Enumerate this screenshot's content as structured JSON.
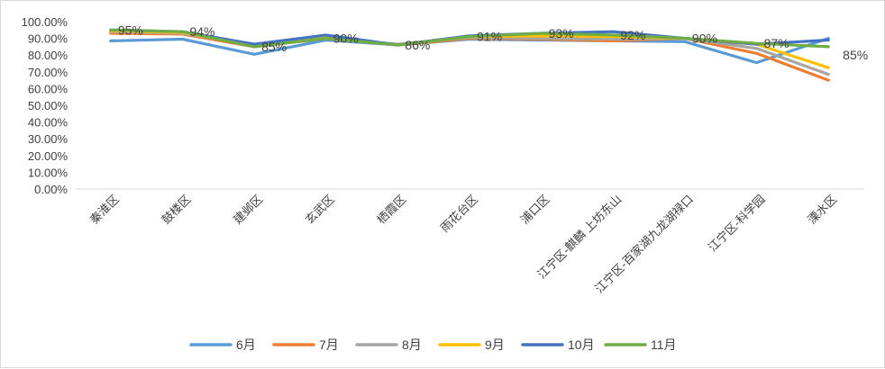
{
  "chart_data": {
    "type": "line",
    "categories": [
      "秦淮区",
      "鼓楼区",
      "建邺区",
      "玄武区",
      "栖霞区",
      "雨花台区",
      "浦口区",
      "江宁区-麒麟 上坊东山",
      "江宁区-百家湖九龙湖禄口",
      "江宁区-科学园",
      "溧水区"
    ],
    "y_ticks": [
      "0.00%",
      "10.00%",
      "20.00%",
      "30.00%",
      "40.00%",
      "50.00%",
      "60.00%",
      "70.00%",
      "80.00%",
      "90.00%",
      "100.00%"
    ],
    "ylim": [
      0,
      100
    ],
    "grid": false,
    "legend_position": "bottom",
    "series": [
      {
        "name": "6月",
        "color": "#5b9bd5",
        "values": [
          88.5,
          89.5,
          80.5,
          89.0,
          86.0,
          89.5,
          89.0,
          88.5,
          88.0,
          75.5,
          90.0
        ]
      },
      {
        "name": "7月",
        "color": "#ed7d31",
        "values": [
          93.0,
          92.5,
          85.0,
          90.0,
          86.0,
          90.0,
          89.5,
          88.5,
          90.0,
          81.0,
          65.0
        ]
      },
      {
        "name": "8月",
        "color": "#a5a5a5",
        "values": [
          94.0,
          93.0,
          86.0,
          90.0,
          86.5,
          90.5,
          90.0,
          89.5,
          90.0,
          84.0,
          68.5
        ]
      },
      {
        "name": "9月",
        "color": "#ffc000",
        "values": [
          94.5,
          93.5,
          85.5,
          90.5,
          86.0,
          91.0,
          91.5,
          91.0,
          90.0,
          86.5,
          72.5
        ]
      },
      {
        "name": "10月",
        "color": "#4472c4",
        "values": [
          95.0,
          94.0,
          86.5,
          92.0,
          86.0,
          91.5,
          93.0,
          94.0,
          90.0,
          86.5,
          89.0
        ]
      },
      {
        "name": "11月",
        "color": "#70ad47",
        "values": [
          95.0,
          94.0,
          85.0,
          90.0,
          86.0,
          91.0,
          93.0,
          92.0,
          90.0,
          87.0,
          85.0
        ]
      }
    ],
    "data_labels": {
      "series": "11月",
      "values": [
        "95%",
        "94%",
        "85%",
        "90%",
        "86%",
        "91%",
        "93%",
        "92%",
        "90%",
        "87%",
        "85%"
      ]
    }
  }
}
